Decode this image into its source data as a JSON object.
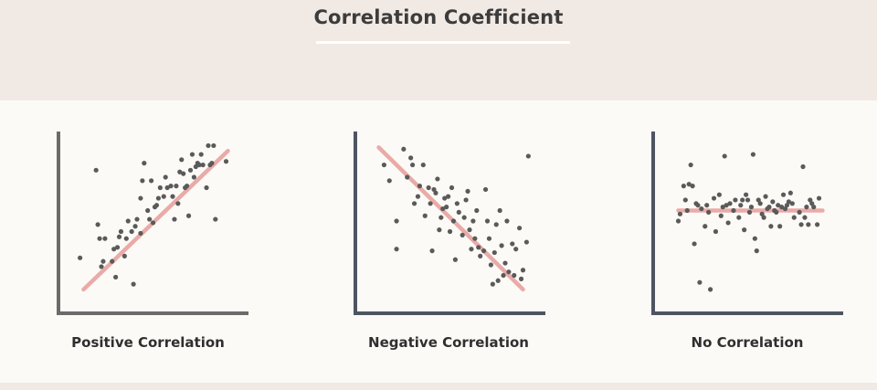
{
  "title": "Correlation Coefficient",
  "colors": {
    "header_bg": "#f1e9e3",
    "page_bg": "#fcfaf6",
    "axis_positive": "#6b6b6b",
    "axis_other": "#4e5560",
    "point": "#5a5a5a",
    "trend_line": "#e7a3a0"
  },
  "chart_data": [
    {
      "type": "scatter",
      "title": "Positive Correlation",
      "xlim": [
        0,
        100
      ],
      "ylim": [
        0,
        100
      ],
      "axes_visible": true,
      "ticks": false,
      "points": [
        [
          8,
          29
        ],
        [
          17,
          79
        ],
        [
          18,
          48
        ],
        [
          19,
          40
        ],
        [
          20,
          24
        ],
        [
          21,
          27
        ],
        [
          22,
          40
        ],
        [
          26,
          27
        ],
        [
          27,
          34
        ],
        [
          28,
          18
        ],
        [
          29,
          35
        ],
        [
          30,
          41
        ],
        [
          31,
          44
        ],
        [
          33,
          30
        ],
        [
          34,
          40
        ],
        [
          35,
          50
        ],
        [
          37,
          44
        ],
        [
          38,
          14
        ],
        [
          39,
          47
        ],
        [
          40,
          51
        ],
        [
          42,
          43
        ],
        [
          42,
          63
        ],
        [
          43,
          73
        ],
        [
          44,
          83
        ],
        [
          46,
          56
        ],
        [
          47,
          51
        ],
        [
          48,
          73
        ],
        [
          49,
          49
        ],
        [
          50,
          58
        ],
        [
          51,
          59
        ],
        [
          52,
          63
        ],
        [
          53,
          69
        ],
        [
          55,
          64
        ],
        [
          56,
          75
        ],
        [
          57,
          69
        ],
        [
          59,
          70
        ],
        [
          60,
          64
        ],
        [
          61,
          51
        ],
        [
          62,
          70
        ],
        [
          63,
          60
        ],
        [
          64,
          78
        ],
        [
          65,
          85
        ],
        [
          66,
          77
        ],
        [
          67,
          69
        ],
        [
          68,
          70
        ],
        [
          69,
          53
        ],
        [
          70,
          79
        ],
        [
          71,
          88
        ],
        [
          72,
          75
        ],
        [
          73,
          81
        ],
        [
          74,
          83
        ],
        [
          75,
          82
        ],
        [
          76,
          88
        ],
        [
          77,
          82
        ],
        [
          79,
          69
        ],
        [
          80,
          93
        ],
        [
          81,
          82
        ],
        [
          82,
          83
        ],
        [
          83,
          93
        ],
        [
          84,
          51
        ],
        [
          90,
          84
        ]
      ],
      "trend_line": [
        [
          10,
          11
        ],
        [
          91,
          90
        ]
      ]
    },
    {
      "type": "scatter",
      "title": "Negative Correlation",
      "xlim": [
        0,
        100
      ],
      "ylim": [
        0,
        100
      ],
      "axes_visible": true,
      "ticks": false,
      "points": [
        [
          12,
          82
        ],
        [
          15,
          73
        ],
        [
          19,
          50
        ],
        [
          19,
          34
        ],
        [
          23,
          91
        ],
        [
          25,
          75
        ],
        [
          27,
          86
        ],
        [
          28,
          82
        ],
        [
          29,
          60
        ],
        [
          31,
          64
        ],
        [
          32,
          70
        ],
        [
          34,
          82
        ],
        [
          35,
          53
        ],
        [
          37,
          69
        ],
        [
          38,
          60
        ],
        [
          39,
          33
        ],
        [
          40,
          68
        ],
        [
          41,
          66
        ],
        [
          42,
          74
        ],
        [
          43,
          45
        ],
        [
          44,
          52
        ],
        [
          45,
          57
        ],
        [
          46,
          63
        ],
        [
          47,
          58
        ],
        [
          48,
          64
        ],
        [
          49,
          44
        ],
        [
          50,
          69
        ],
        [
          51,
          50
        ],
        [
          52,
          28
        ],
        [
          53,
          60
        ],
        [
          54,
          55
        ],
        [
          56,
          42
        ],
        [
          57,
          52
        ],
        [
          58,
          62
        ],
        [
          59,
          67
        ],
        [
          60,
          45
        ],
        [
          61,
          34
        ],
        [
          62,
          50
        ],
        [
          63,
          40
        ],
        [
          64,
          56
        ],
        [
          65,
          35
        ],
        [
          66,
          30
        ],
        [
          68,
          33
        ],
        [
          69,
          68
        ],
        [
          70,
          50
        ],
        [
          71,
          40
        ],
        [
          72,
          25
        ],
        [
          73,
          14
        ],
        [
          74,
          32
        ],
        [
          75,
          48
        ],
        [
          76,
          16
        ],
        [
          77,
          56
        ],
        [
          78,
          36
        ],
        [
          79,
          19
        ],
        [
          80,
          26
        ],
        [
          81,
          50
        ],
        [
          82,
          21
        ],
        [
          84,
          37
        ],
        [
          85,
          19
        ],
        [
          86,
          34
        ],
        [
          88,
          46
        ],
        [
          89,
          17
        ],
        [
          90,
          22
        ],
        [
          92,
          38
        ],
        [
          93,
          87
        ]
      ],
      "trend_line": [
        [
          9,
          92
        ],
        [
          90,
          11
        ]
      ]
    },
    {
      "type": "scatter",
      "title": "No Correlation",
      "xlim": [
        0,
        100
      ],
      "ylim": [
        0,
        100
      ],
      "axes_visible": true,
      "ticks": false,
      "points": [
        [
          10,
          50
        ],
        [
          11,
          54
        ],
        [
          13,
          70
        ],
        [
          14,
          62
        ],
        [
          15,
          56
        ],
        [
          16,
          71
        ],
        [
          17,
          82
        ],
        [
          18,
          70
        ],
        [
          19,
          37
        ],
        [
          20,
          60
        ],
        [
          21,
          59
        ],
        [
          22,
          15
        ],
        [
          23,
          57
        ],
        [
          25,
          47
        ],
        [
          26,
          59
        ],
        [
          27,
          55
        ],
        [
          28,
          11
        ],
        [
          30,
          63
        ],
        [
          31,
          44
        ],
        [
          33,
          65
        ],
        [
          34,
          53
        ],
        [
          35,
          58
        ],
        [
          36,
          87
        ],
        [
          37,
          59
        ],
        [
          38,
          49
        ],
        [
          39,
          60
        ],
        [
          41,
          56
        ],
        [
          42,
          62
        ],
        [
          44,
          52
        ],
        [
          45,
          59
        ],
        [
          46,
          62
        ],
        [
          47,
          45
        ],
        [
          48,
          65
        ],
        [
          49,
          62
        ],
        [
          50,
          55
        ],
        [
          51,
          58
        ],
        [
          52,
          88
        ],
        [
          53,
          40
        ],
        [
          54,
          33
        ],
        [
          55,
          62
        ],
        [
          56,
          60
        ],
        [
          57,
          54
        ],
        [
          58,
          52
        ],
        [
          59,
          64
        ],
        [
          60,
          57
        ],
        [
          61,
          58
        ],
        [
          62,
          47
        ],
        [
          63,
          61
        ],
        [
          64,
          56
        ],
        [
          65,
          55
        ],
        [
          66,
          59
        ],
        [
          67,
          47
        ],
        [
          68,
          58
        ],
        [
          69,
          65
        ],
        [
          70,
          57
        ],
        [
          71,
          59
        ],
        [
          72,
          61
        ],
        [
          73,
          66
        ],
        [
          74,
          60
        ],
        [
          75,
          52
        ],
        [
          78,
          55
        ],
        [
          79,
          48
        ],
        [
          80,
          81
        ],
        [
          81,
          52
        ],
        [
          82,
          58
        ],
        [
          83,
          48
        ],
        [
          84,
          62
        ],
        [
          85,
          60
        ],
        [
          86,
          58
        ],
        [
          88,
          48
        ],
        [
          89,
          63
        ]
      ],
      "trend_line": [
        [
          10,
          56
        ],
        [
          91,
          56
        ]
      ]
    }
  ]
}
